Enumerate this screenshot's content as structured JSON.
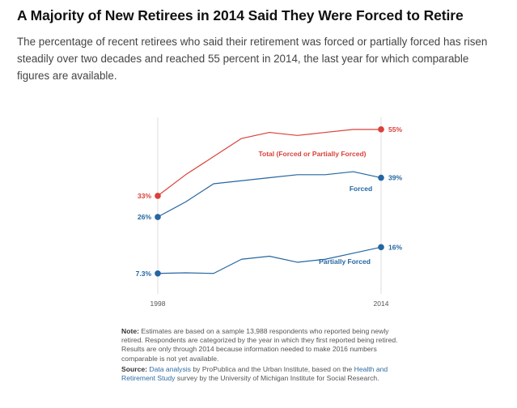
{
  "title": "A Majority of New Retirees in 2014 Said They Were Forced to Retire",
  "subtitle": "The percentage of recent retirees who said their retirement was forced or partially forced has risen steadily over two decades and reached 55 percent in 2014, the last year for which comparable figures are available.",
  "colors": {
    "total": "#d9413a",
    "forced": "#2466a1",
    "partial": "#2466a1",
    "gridline": "#dddddd",
    "label": "#555555"
  },
  "chart_data": {
    "type": "line",
    "x": [
      1998,
      2000,
      2002,
      2004,
      2006,
      2008,
      2010,
      2012,
      2014
    ],
    "xtick_labels": [
      "1998",
      "2014"
    ],
    "ylim": [
      0,
      60
    ],
    "grid": "vertical lines at 1998 and 2014",
    "legend": "inline labels next to each line",
    "series": [
      {
        "name": "Total (Forced or Partially Forced)",
        "color": "#d9413a",
        "values": [
          33,
          40,
          46,
          52,
          54,
          53,
          54,
          55,
          55
        ],
        "start_label": "33%",
        "end_label": "55%"
      },
      {
        "name": "Forced",
        "color": "#2466a1",
        "values": [
          26,
          31,
          37,
          38,
          39,
          40,
          40,
          41,
          39
        ],
        "start_label": "26%",
        "end_label": "39%"
      },
      {
        "name": "Partially Forced",
        "color": "#2466a1",
        "values": [
          7.3,
          7.5,
          7.3,
          12,
          13,
          11,
          12,
          14,
          16
        ],
        "start_label": "7.3%",
        "end_label": "16%"
      }
    ]
  },
  "note": {
    "label": "Note:",
    "text": "Estimates are based on a sample 13,988 respondents who reported being newly retired. Respondents are categorized by the year in which they first reported being retired. Results are only through 2014 because information needed to make 2016 numbers comparable is not yet available."
  },
  "source": {
    "label": "Source:",
    "link1": "Data analysis",
    "text1": "by ProPublica and the Urban Institute, based on the",
    "link2": "Health and Retirement Study",
    "text2": "survey by the University of Michigan Institute for Social Research."
  }
}
